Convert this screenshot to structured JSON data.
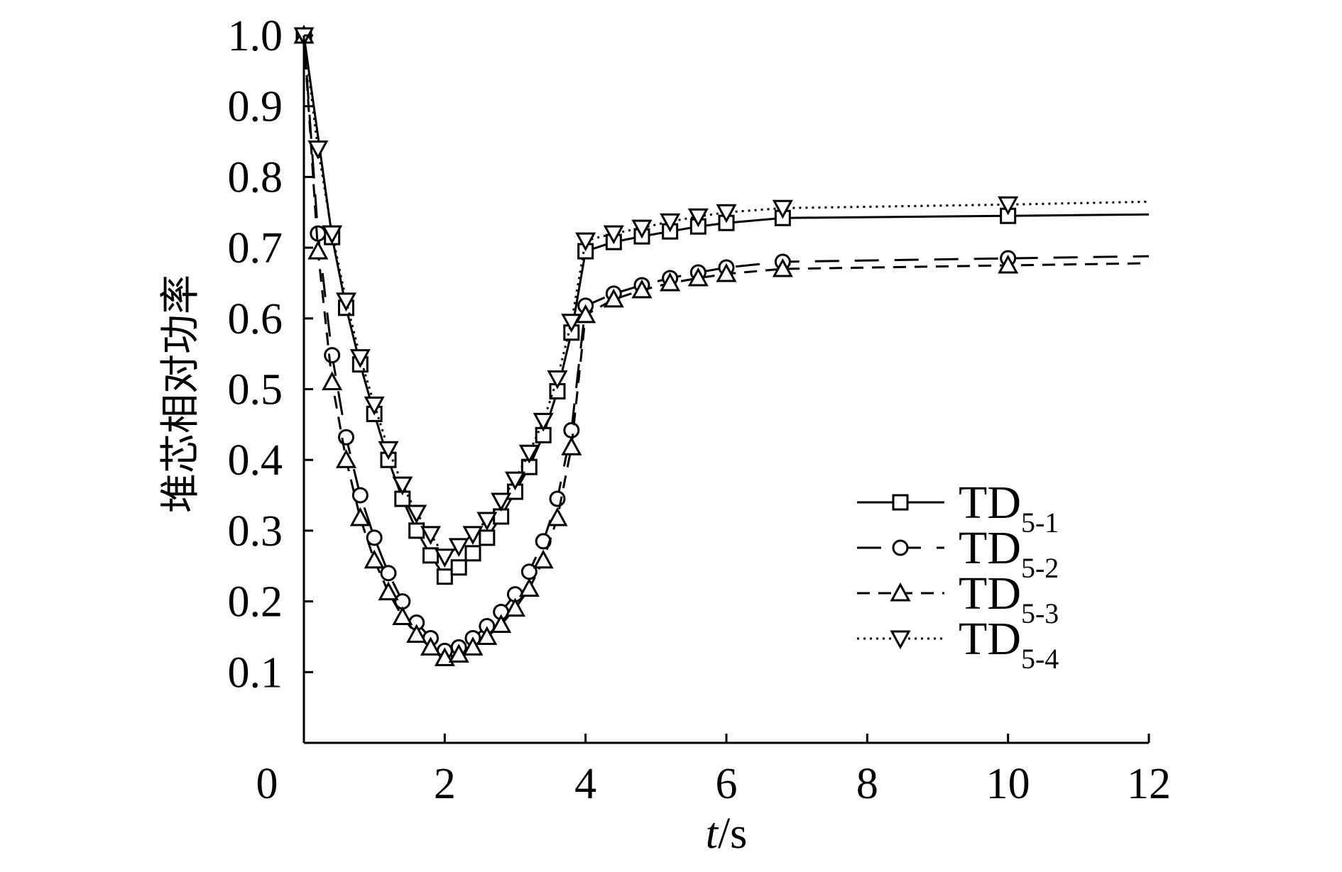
{
  "chart_data": {
    "type": "line",
    "xlabel": "t/s",
    "xlabel_italic": "t",
    "xlabel_unit": "/s",
    "ylabel": "堆芯相对功率",
    "xlim": [
      0,
      12
    ],
    "ylim": [
      0,
      1.0
    ],
    "x_ticks": [
      "0",
      "2",
      "4",
      "6",
      "8",
      "10",
      "12"
    ],
    "y_ticks": [
      "0.1",
      "0.2",
      "0.3",
      "0.4",
      "0.5",
      "0.6",
      "0.7",
      "0.8",
      "0.9",
      "1.0"
    ],
    "grid": false,
    "legend_position": "right",
    "series": [
      {
        "name": "TD5-1",
        "name_main": "TD",
        "name_sub": "5-1",
        "line": "solid",
        "marker": "square",
        "points": [
          [
            0,
            1.0
          ],
          [
            0.4,
            0.715
          ],
          [
            0.6,
            0.615
          ],
          [
            0.8,
            0.535
          ],
          [
            1.0,
            0.465
          ],
          [
            1.2,
            0.4
          ],
          [
            1.4,
            0.345
          ],
          [
            1.6,
            0.3
          ],
          [
            1.8,
            0.265
          ],
          [
            2.0,
            0.235
          ],
          [
            2.2,
            0.248
          ],
          [
            2.4,
            0.268
          ],
          [
            2.6,
            0.29
          ],
          [
            2.8,
            0.32
          ],
          [
            3.0,
            0.355
          ],
          [
            3.2,
            0.39
          ],
          [
            3.4,
            0.435
          ],
          [
            3.6,
            0.497
          ],
          [
            3.8,
            0.58
          ],
          [
            4.0,
            0.695
          ],
          [
            4.4,
            0.708
          ],
          [
            4.8,
            0.716
          ],
          [
            5.2,
            0.723
          ],
          [
            5.6,
            0.73
          ],
          [
            6.0,
            0.735
          ],
          [
            6.8,
            0.742
          ],
          [
            10.0,
            0.745
          ],
          [
            12.0,
            0.747
          ]
        ],
        "markers": [
          [
            0,
            1.0
          ],
          [
            0.4,
            0.715
          ],
          [
            0.6,
            0.615
          ],
          [
            0.8,
            0.535
          ],
          [
            1.0,
            0.465
          ],
          [
            1.2,
            0.4
          ],
          [
            1.4,
            0.345
          ],
          [
            1.6,
            0.3
          ],
          [
            1.8,
            0.265
          ],
          [
            2.0,
            0.235
          ],
          [
            2.2,
            0.248
          ],
          [
            2.4,
            0.268
          ],
          [
            2.6,
            0.29
          ],
          [
            2.8,
            0.32
          ],
          [
            3.0,
            0.355
          ],
          [
            3.2,
            0.39
          ],
          [
            3.4,
            0.435
          ],
          [
            3.6,
            0.497
          ],
          [
            3.8,
            0.58
          ],
          [
            4.0,
            0.695
          ],
          [
            4.4,
            0.708
          ],
          [
            4.8,
            0.716
          ],
          [
            5.2,
            0.723
          ],
          [
            5.6,
            0.73
          ],
          [
            6.0,
            0.735
          ],
          [
            6.8,
            0.742
          ],
          [
            10.0,
            0.745
          ]
        ]
      },
      {
        "name": "TD5-2",
        "name_main": "TD",
        "name_sub": "5-2",
        "line": "longdash",
        "marker": "circle",
        "points": [
          [
            0,
            1.0
          ],
          [
            0.2,
            0.72
          ],
          [
            0.4,
            0.548
          ],
          [
            0.6,
            0.432
          ],
          [
            0.8,
            0.35
          ],
          [
            1.0,
            0.29
          ],
          [
            1.2,
            0.24
          ],
          [
            1.4,
            0.2
          ],
          [
            1.6,
            0.17
          ],
          [
            1.8,
            0.148
          ],
          [
            2.0,
            0.13
          ],
          [
            2.2,
            0.135
          ],
          [
            2.4,
            0.148
          ],
          [
            2.6,
            0.165
          ],
          [
            2.8,
            0.185
          ],
          [
            3.0,
            0.21
          ],
          [
            3.2,
            0.242
          ],
          [
            3.4,
            0.285
          ],
          [
            3.6,
            0.345
          ],
          [
            3.8,
            0.442
          ],
          [
            4.0,
            0.618
          ],
          [
            4.4,
            0.635
          ],
          [
            4.8,
            0.647
          ],
          [
            5.2,
            0.657
          ],
          [
            5.6,
            0.665
          ],
          [
            6.0,
            0.672
          ],
          [
            6.8,
            0.68
          ],
          [
            10.0,
            0.685
          ],
          [
            12.0,
            0.688
          ]
        ],
        "markers": [
          [
            0,
            1.0
          ],
          [
            0.2,
            0.72
          ],
          [
            0.4,
            0.548
          ],
          [
            0.6,
            0.432
          ],
          [
            0.8,
            0.35
          ],
          [
            1.0,
            0.29
          ],
          [
            1.2,
            0.24
          ],
          [
            1.4,
            0.2
          ],
          [
            1.6,
            0.17
          ],
          [
            1.8,
            0.148
          ],
          [
            2.0,
            0.13
          ],
          [
            2.2,
            0.135
          ],
          [
            2.4,
            0.148
          ],
          [
            2.6,
            0.165
          ],
          [
            2.8,
            0.185
          ],
          [
            3.0,
            0.21
          ],
          [
            3.2,
            0.242
          ],
          [
            3.4,
            0.285
          ],
          [
            3.6,
            0.345
          ],
          [
            3.8,
            0.442
          ],
          [
            4.0,
            0.618
          ],
          [
            4.4,
            0.635
          ],
          [
            4.8,
            0.647
          ],
          [
            5.2,
            0.657
          ],
          [
            5.6,
            0.665
          ],
          [
            6.0,
            0.672
          ],
          [
            6.8,
            0.68
          ],
          [
            10.0,
            0.685
          ]
        ]
      },
      {
        "name": "TD5-3",
        "name_main": "TD",
        "name_sub": "5-3",
        "line": "shortdash",
        "marker": "triangle-up",
        "points": [
          [
            0,
            1.0
          ],
          [
            0.2,
            0.695
          ],
          [
            0.4,
            0.51
          ],
          [
            0.6,
            0.4
          ],
          [
            0.8,
            0.318
          ],
          [
            1.0,
            0.258
          ],
          [
            1.2,
            0.213
          ],
          [
            1.4,
            0.178
          ],
          [
            1.6,
            0.153
          ],
          [
            1.8,
            0.135
          ],
          [
            2.0,
            0.12
          ],
          [
            2.2,
            0.125
          ],
          [
            2.4,
            0.135
          ],
          [
            2.6,
            0.15
          ],
          [
            2.8,
            0.167
          ],
          [
            3.0,
            0.19
          ],
          [
            3.2,
            0.218
          ],
          [
            3.4,
            0.258
          ],
          [
            3.6,
            0.318
          ],
          [
            3.8,
            0.418
          ],
          [
            4.0,
            0.605
          ],
          [
            4.4,
            0.627
          ],
          [
            4.8,
            0.64
          ],
          [
            5.2,
            0.65
          ],
          [
            5.6,
            0.657
          ],
          [
            6.0,
            0.663
          ],
          [
            6.8,
            0.67
          ],
          [
            10.0,
            0.675
          ],
          [
            12.0,
            0.678
          ]
        ],
        "markers": [
          [
            0,
            1.0
          ],
          [
            0.2,
            0.695
          ],
          [
            0.4,
            0.51
          ],
          [
            0.6,
            0.4
          ],
          [
            0.8,
            0.318
          ],
          [
            1.0,
            0.258
          ],
          [
            1.2,
            0.213
          ],
          [
            1.4,
            0.178
          ],
          [
            1.6,
            0.153
          ],
          [
            1.8,
            0.135
          ],
          [
            2.0,
            0.12
          ],
          [
            2.2,
            0.125
          ],
          [
            2.4,
            0.135
          ],
          [
            2.6,
            0.15
          ],
          [
            2.8,
            0.167
          ],
          [
            3.0,
            0.19
          ],
          [
            3.2,
            0.218
          ],
          [
            3.4,
            0.258
          ],
          [
            3.6,
            0.318
          ],
          [
            3.8,
            0.418
          ],
          [
            4.0,
            0.605
          ],
          [
            4.4,
            0.627
          ],
          [
            4.8,
            0.64
          ],
          [
            5.2,
            0.65
          ],
          [
            5.6,
            0.657
          ],
          [
            6.0,
            0.663
          ],
          [
            6.8,
            0.67
          ],
          [
            10.0,
            0.675
          ]
        ]
      },
      {
        "name": "TD5-4",
        "name_main": "TD",
        "name_sub": "5-4",
        "line": "dotted",
        "marker": "triangle-down",
        "points": [
          [
            0,
            1.0
          ],
          [
            0.2,
            0.84
          ],
          [
            0.4,
            0.72
          ],
          [
            0.6,
            0.625
          ],
          [
            0.8,
            0.545
          ],
          [
            1.0,
            0.478
          ],
          [
            1.2,
            0.415
          ],
          [
            1.4,
            0.365
          ],
          [
            1.6,
            0.325
          ],
          [
            1.8,
            0.295
          ],
          [
            2.0,
            0.263
          ],
          [
            2.2,
            0.278
          ],
          [
            2.4,
            0.295
          ],
          [
            2.6,
            0.315
          ],
          [
            2.8,
            0.342
          ],
          [
            3.0,
            0.372
          ],
          [
            3.2,
            0.41
          ],
          [
            3.4,
            0.455
          ],
          [
            3.6,
            0.515
          ],
          [
            3.8,
            0.595
          ],
          [
            4.0,
            0.71
          ],
          [
            4.4,
            0.72
          ],
          [
            4.8,
            0.728
          ],
          [
            5.2,
            0.737
          ],
          [
            5.6,
            0.744
          ],
          [
            6.0,
            0.75
          ],
          [
            6.8,
            0.756
          ],
          [
            10.0,
            0.761
          ],
          [
            12.0,
            0.765
          ]
        ],
        "markers": [
          [
            0,
            1.0
          ],
          [
            0.2,
            0.84
          ],
          [
            0.4,
            0.72
          ],
          [
            0.6,
            0.625
          ],
          [
            0.8,
            0.545
          ],
          [
            1.0,
            0.478
          ],
          [
            1.2,
            0.415
          ],
          [
            1.4,
            0.365
          ],
          [
            1.6,
            0.325
          ],
          [
            1.8,
            0.295
          ],
          [
            2.0,
            0.263
          ],
          [
            2.2,
            0.278
          ],
          [
            2.4,
            0.295
          ],
          [
            2.6,
            0.315
          ],
          [
            2.8,
            0.342
          ],
          [
            3.0,
            0.372
          ],
          [
            3.2,
            0.41
          ],
          [
            3.4,
            0.455
          ],
          [
            3.6,
            0.515
          ],
          [
            3.8,
            0.595
          ],
          [
            4.0,
            0.71
          ],
          [
            4.4,
            0.72
          ],
          [
            4.8,
            0.728
          ],
          [
            5.2,
            0.737
          ],
          [
            5.6,
            0.744
          ],
          [
            6.0,
            0.75
          ],
          [
            6.8,
            0.756
          ],
          [
            10.0,
            0.761
          ]
        ]
      }
    ]
  }
}
